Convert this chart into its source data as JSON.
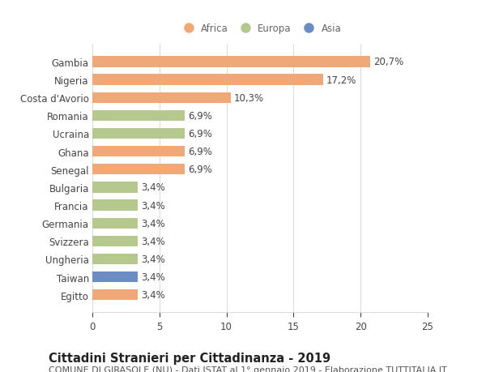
{
  "categories": [
    "Egitto",
    "Taiwan",
    "Ungheria",
    "Svizzera",
    "Germania",
    "Francia",
    "Bulgaria",
    "Senegal",
    "Ghana",
    "Ucraina",
    "Romania",
    "Costa d'Avorio",
    "Nigeria",
    "Gambia"
  ],
  "values": [
    3.4,
    3.4,
    3.4,
    3.4,
    3.4,
    3.4,
    3.4,
    6.9,
    6.9,
    6.9,
    6.9,
    10.3,
    17.2,
    20.7
  ],
  "labels": [
    "3,4%",
    "3,4%",
    "3,4%",
    "3,4%",
    "3,4%",
    "3,4%",
    "3,4%",
    "6,9%",
    "6,9%",
    "6,9%",
    "6,9%",
    "10,3%",
    "17,2%",
    "20,7%"
  ],
  "colors": [
    "#f0a878",
    "#6b8dc4",
    "#b5c98e",
    "#b5c98e",
    "#b5c98e",
    "#b5c98e",
    "#b5c98e",
    "#f0a878",
    "#f0a878",
    "#b5c98e",
    "#b5c98e",
    "#f0a878",
    "#f0a878",
    "#f0a878"
  ],
  "legend_labels": [
    "Africa",
    "Europa",
    "Asia"
  ],
  "legend_colors": [
    "#f0a878",
    "#b5c98e",
    "#6b8dc4"
  ],
  "title": "Cittadini Stranieri per Cittadinanza - 2019",
  "subtitle": "COMUNE DI GIRASOLE (NU) - Dati ISTAT al 1° gennaio 2019 - Elaborazione TUTTITALIA.IT",
  "xlim": [
    0,
    25
  ],
  "xticks": [
    0,
    5,
    10,
    15,
    20,
    25
  ],
  "background_color": "#ffffff",
  "grid_color": "#dddddd",
  "bar_height": 0.6,
  "label_fontsize": 8.5,
  "tick_fontsize": 8.5,
  "title_fontsize": 10.5,
  "subtitle_fontsize": 8.0
}
